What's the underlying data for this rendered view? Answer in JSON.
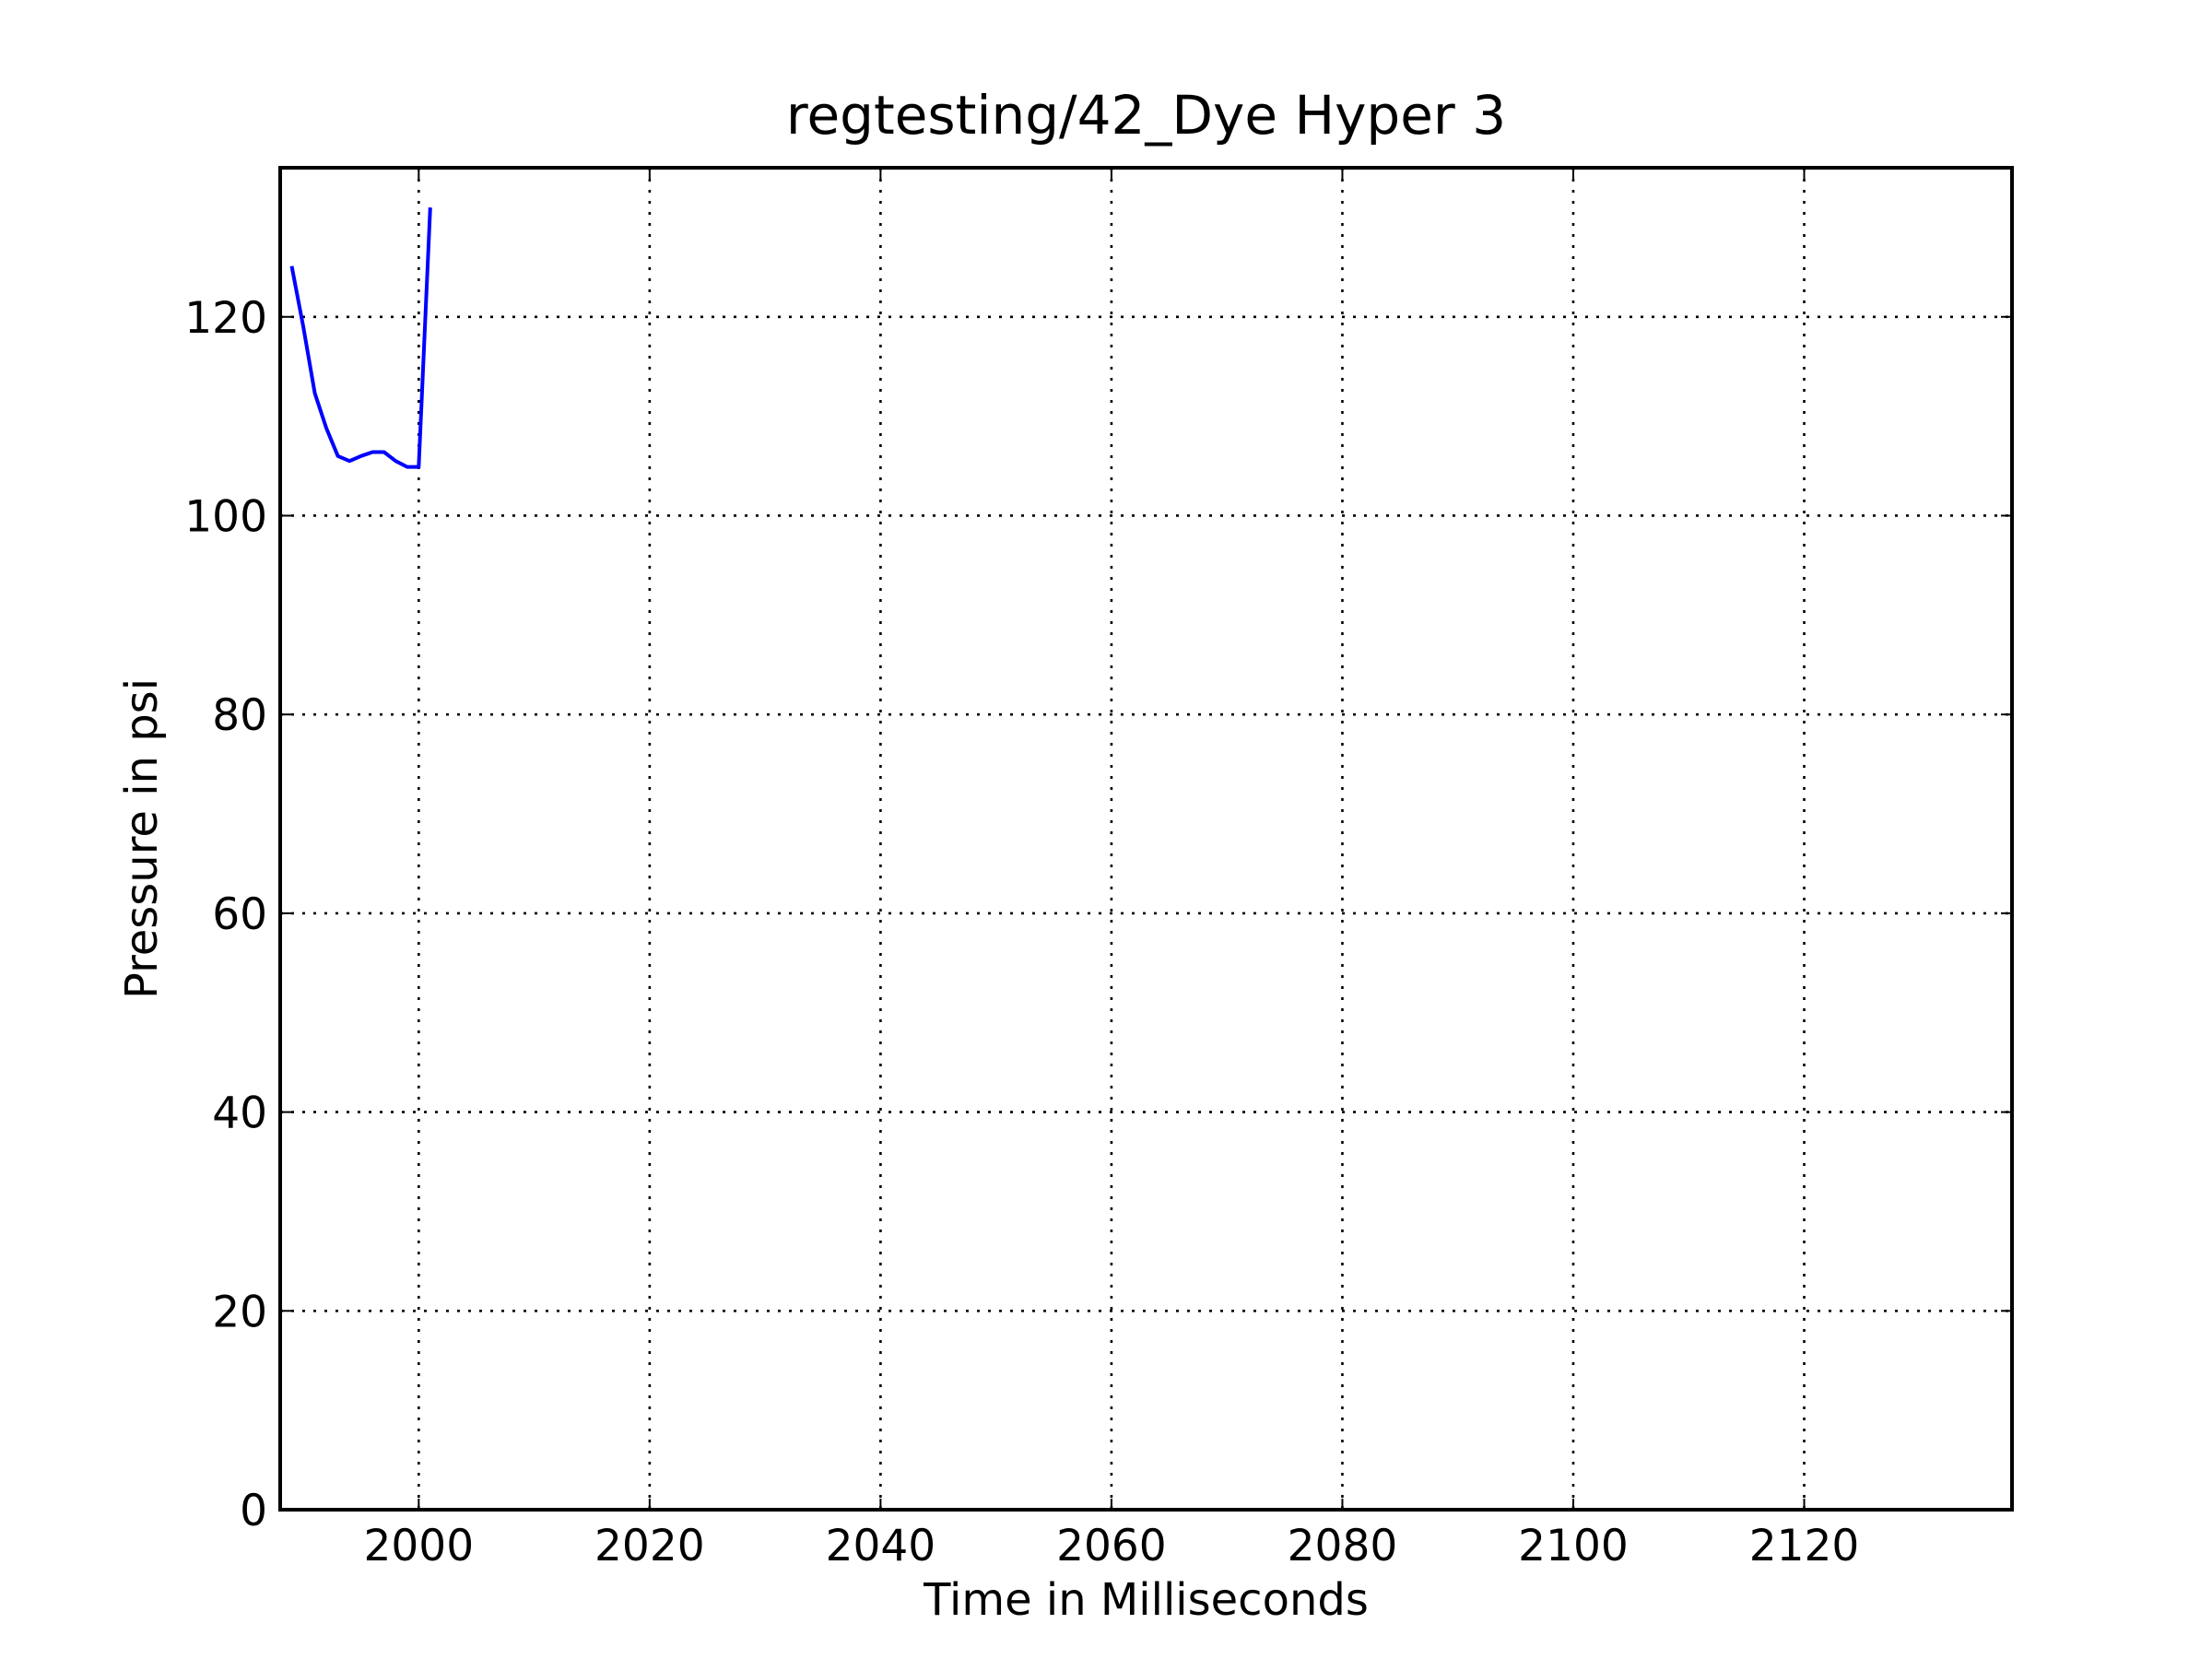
{
  "chart_data": {
    "type": "line",
    "title": "regtesting/42_Dye Hyper 3",
    "xlabel": "Time in Milliseconds",
    "ylabel": "Pressure in psi",
    "xlim": [
      1988,
      2138
    ],
    "ylim": [
      0,
      135
    ],
    "xticks": [
      2000,
      2020,
      2040,
      2060,
      2080,
      2100,
      2120
    ],
    "yticks": [
      0,
      20,
      40,
      60,
      80,
      100,
      120
    ],
    "grid": true,
    "legend": "none",
    "series": [
      {
        "color": "#0000ff",
        "x": [
          1989,
          1990,
          1991,
          1992,
          1993,
          1994,
          1995,
          1996,
          1997,
          1998,
          1999,
          2000,
          2001
        ],
        "y": [
          125.1,
          119.0,
          112.3,
          108.8,
          106.0,
          105.5,
          106.0,
          106.4,
          106.4,
          105.5,
          104.9,
          104.9,
          131.0
        ]
      }
    ]
  }
}
